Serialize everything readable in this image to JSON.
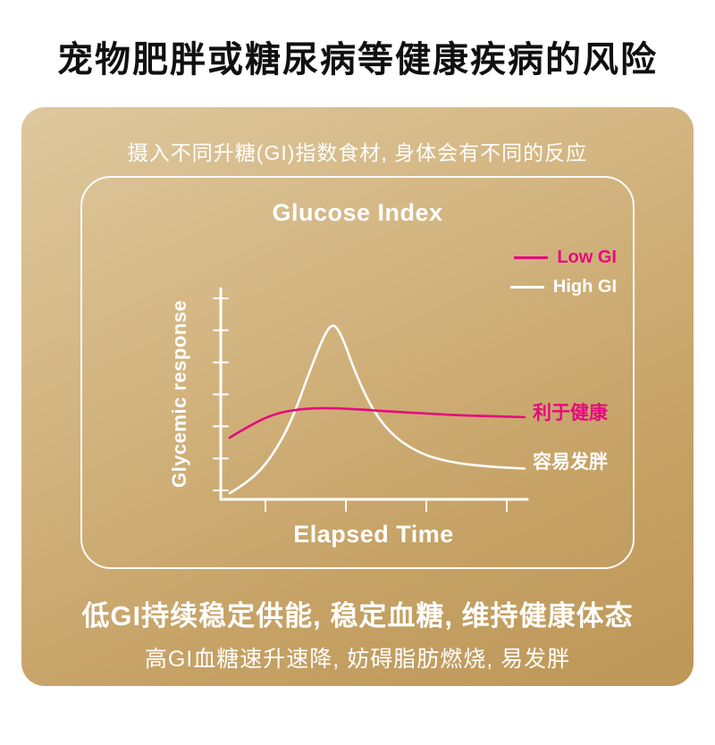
{
  "page": {
    "title": "宠物肥胖或糖尿病等健康疾病的风险"
  },
  "card": {
    "subtitle": "摄入不同升糖(GI)指数食材, 身体会有不同的反应",
    "footer_line1": "低GI持续稳定供能, 稳定血糖, 维持健康体态",
    "footer_line2": "高GI血糖速升速降, 妨碍脂肪燃烧, 易发胖"
  },
  "chart": {
    "title": "Glucose Index",
    "ylabel": "Glycemic response",
    "xlabel": "Elapsed Time",
    "legend": [
      {
        "label": "Low GI",
        "color": "#e6097e"
      },
      {
        "label": "High GI",
        "color": "#ffffff"
      }
    ],
    "annotations": [
      {
        "text": "利于健康",
        "color": "#e6097e"
      },
      {
        "text": "容易发胖",
        "color": "#ffffff"
      }
    ]
  },
  "chart_data": {
    "type": "line",
    "title": "Glucose Index",
    "xlabel": "Elapsed Time",
    "ylabel": "Glycemic response",
    "x_range": [
      0,
      10
    ],
    "y_range": [
      0,
      10
    ],
    "grid": false,
    "legend_position": "top-right",
    "x_ticks": 4,
    "y_ticks": 7,
    "series": [
      {
        "name": "Low GI",
        "color": "#e6097e",
        "points": [
          [
            0,
            3.0
          ],
          [
            0.8,
            3.7
          ],
          [
            1.6,
            4.2
          ],
          [
            2.4,
            4.4
          ],
          [
            3.2,
            4.45
          ],
          [
            4.2,
            4.4
          ],
          [
            5.2,
            4.3
          ],
          [
            6.4,
            4.2
          ],
          [
            7.6,
            4.1
          ],
          [
            8.8,
            4.05
          ],
          [
            10,
            4.0
          ]
        ]
      },
      {
        "name": "High GI",
        "color": "#ffffff",
        "points": [
          [
            0,
            0.3
          ],
          [
            0.7,
            0.9
          ],
          [
            1.4,
            2.0
          ],
          [
            2.1,
            3.8
          ],
          [
            2.7,
            6.2
          ],
          [
            3.2,
            8.0
          ],
          [
            3.5,
            8.6
          ],
          [
            3.8,
            8.0
          ],
          [
            4.3,
            6.0
          ],
          [
            4.9,
            4.2
          ],
          [
            5.6,
            3.0
          ],
          [
            6.5,
            2.2
          ],
          [
            7.5,
            1.8
          ],
          [
            8.7,
            1.6
          ],
          [
            10,
            1.5
          ]
        ]
      }
    ]
  },
  "colors": {
    "accent_pink": "#e6097e",
    "card_gold_light": "#dec89e",
    "card_gold_dark": "#bd9757",
    "text_dark": "#101010"
  }
}
